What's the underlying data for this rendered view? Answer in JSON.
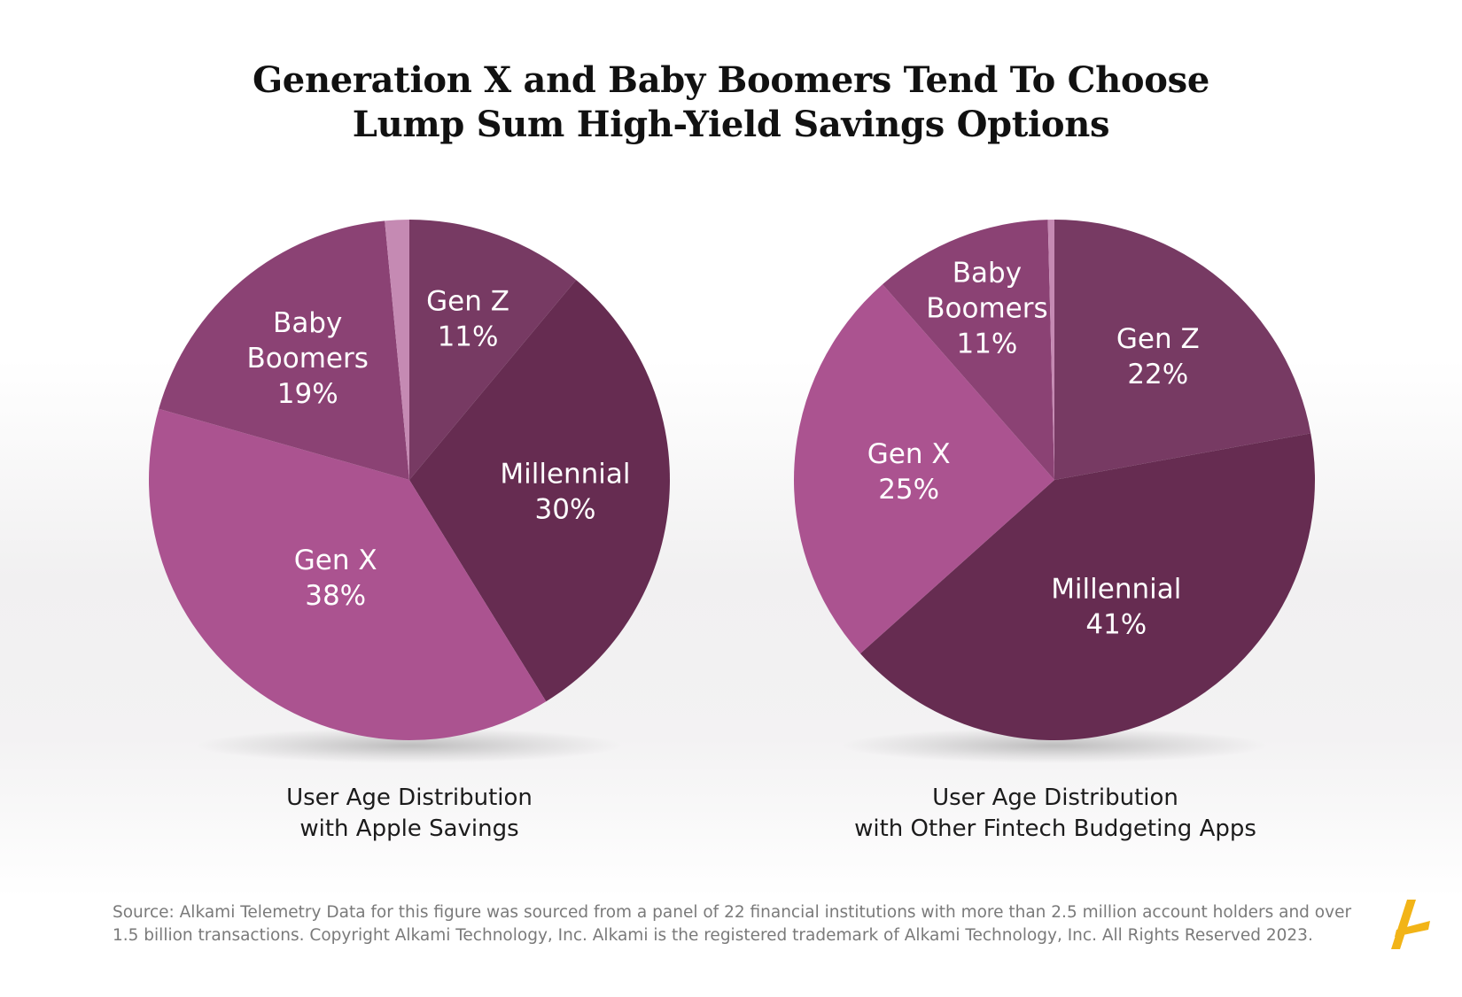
{
  "title": {
    "line1": "Generation X and Baby Boomers Tend To Choose",
    "line2": "Lump Sum High-Yield Savings Options"
  },
  "chart_data": [
    {
      "type": "pie",
      "title": "User Age Distribution with Apple Savings",
      "caption_line1": "User Age Distribution",
      "caption_line2": "with Apple Savings",
      "slices": [
        {
          "name": "Gen Z",
          "value": 11,
          "label": "11%",
          "color": "#773a63"
        },
        {
          "name": "Millennial",
          "value": 30,
          "label": "30%",
          "color": "#662c51"
        },
        {
          "name": "Gen X",
          "value": 38,
          "label": "38%",
          "color": "#ab5390"
        },
        {
          "name": "Baby Boomers",
          "value": 19,
          "label": "19%",
          "color": "#8b4274"
        },
        {
          "name": "",
          "value": 1.5,
          "label": "",
          "color": "#c58ab3"
        }
      ]
    },
    {
      "type": "pie",
      "title": "User Age Distribution with Other Fintech Budgeting Apps",
      "caption_line1": "User Age Distribution",
      "caption_line2": "with Other Fintech Budgeting Apps",
      "slices": [
        {
          "name": "Gen Z",
          "value": 22,
          "label": "22%",
          "color": "#773a63"
        },
        {
          "name": "Millennial",
          "value": 41,
          "label": "41%",
          "color": "#662c51"
        },
        {
          "name": "Gen X",
          "value": 25,
          "label": "25%",
          "color": "#ab5390"
        },
        {
          "name": "Baby Boomers",
          "value": 11,
          "label": "11%",
          "color": "#8b4274"
        },
        {
          "name": "",
          "value": 0.4,
          "label": "",
          "color": "#c58ab3"
        }
      ]
    }
  ],
  "source": {
    "line1": "Source: Alkami Telemetry Data for this figure was sourced from a panel of 22 financial institutions with more than 2.5 million account holders and over",
    "line2": "1.5 billion transactions. Copyright Alkami Technology, Inc. Alkami is the registered trademark of Alkami Technology, Inc. All Rights Reserved 2023."
  },
  "logo": {
    "icon": "alkami-logo-icon",
    "color": "#f2b417"
  },
  "colors": {
    "title": "#111111",
    "caption": "#1c1c1c",
    "source": "#7a7a7a",
    "label": "#ffffff"
  }
}
